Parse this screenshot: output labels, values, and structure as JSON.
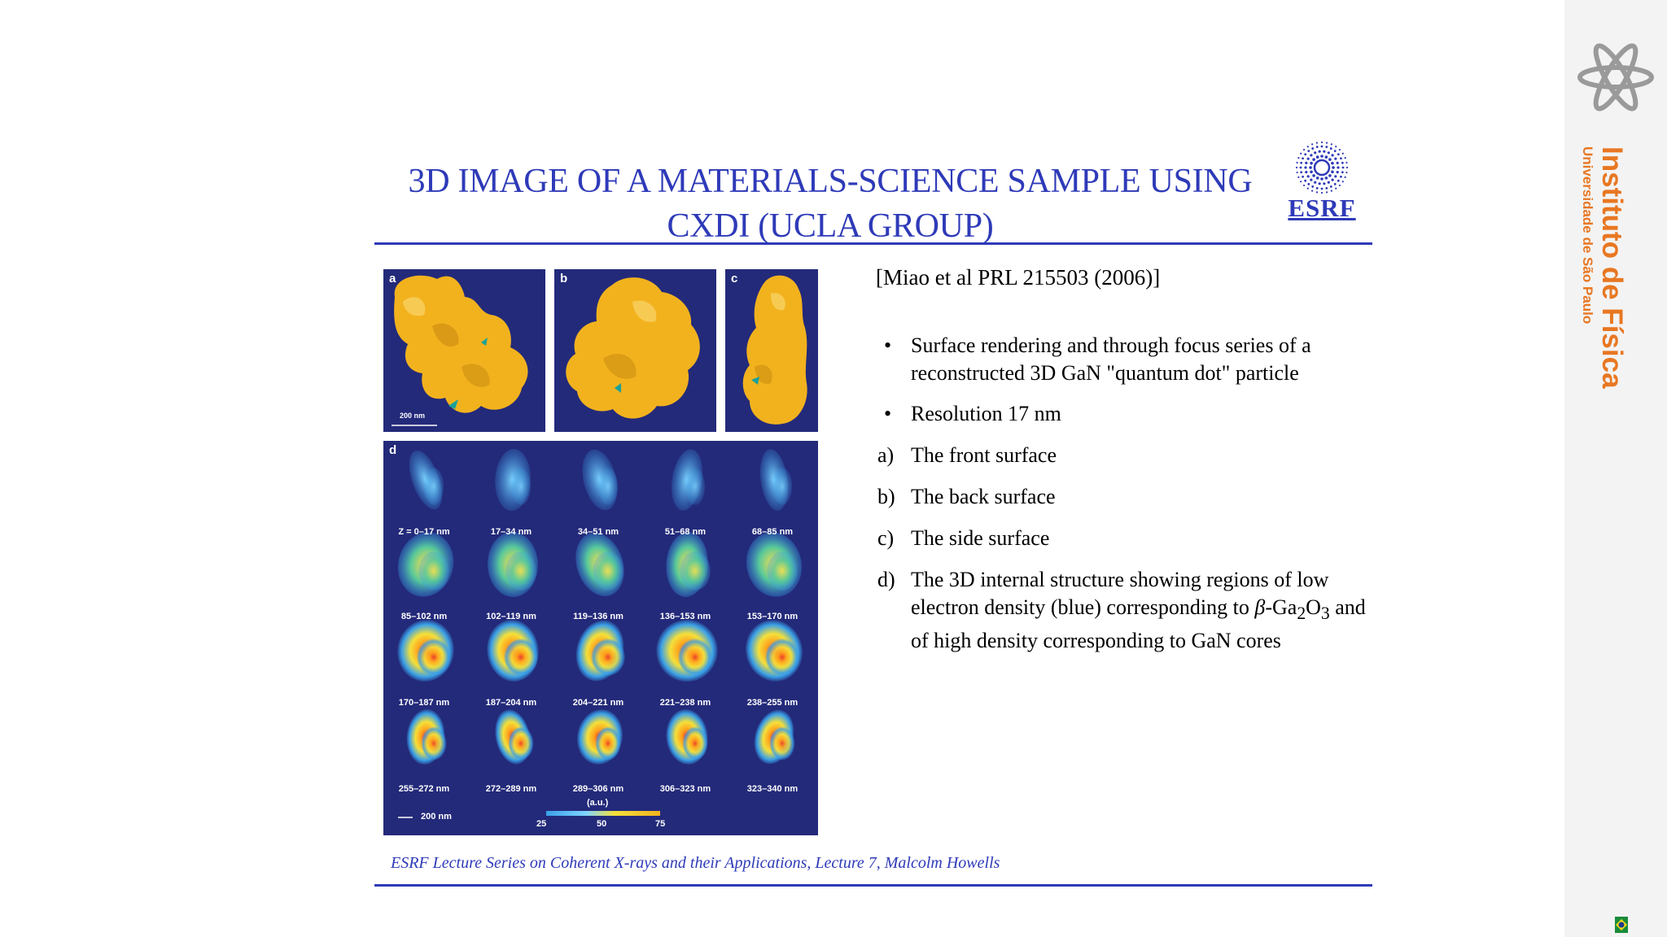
{
  "slide": {
    "title_line1": "3D IMAGE OF A MATERIALS-SCIENCE SAMPLE USING",
    "title_line2": "CXDI (UCLA GROUP)",
    "logo_text": "ESRF",
    "citation": "[Miao et al PRL 215503 (2006)]",
    "bullets": [
      {
        "marker": "•",
        "text": "Surface rendering and through focus series of a reconstructed 3D GaN \"quantum dot\" particle"
      },
      {
        "marker": "•",
        "text": "Resolution 17 nm"
      },
      {
        "marker": "a)",
        "text": "The front surface"
      },
      {
        "marker": "b)",
        "text": "The back surface"
      },
      {
        "marker": "c)",
        "text": "The side surface"
      }
    ],
    "bullet_d": {
      "marker": "d)",
      "text_1": "The 3D internal structure showing regions of low electron density (blue) corresponding to ",
      "beta": "β",
      "text_2": "-Ga",
      "sub_1": "2",
      "text_3": "O",
      "sub_2": "3",
      "text_4": " and of high density corresponding to GaN cores"
    },
    "footer": "ESRF Lecture Series on Coherent X-rays and their Applications, Lecture 7, Malcolm Howells"
  },
  "figure": {
    "panel_labels": [
      "a",
      "b",
      "c",
      "d"
    ],
    "scale_bar_a": "200 nm",
    "scale_bar_d": "200 nm",
    "slice_labels": [
      "Z = 0–17 nm",
      "17–34 nm",
      "34–51 nm",
      "51–68 nm",
      "68–85 nm",
      "85–102 nm",
      "102–119 nm",
      "119–136 nm",
      "136–153 nm",
      "153–170 nm",
      "170–187 nm",
      "187–204 nm",
      "204–221 nm",
      "221–238 nm",
      "238–255 nm",
      "255–272 nm",
      "272–289 nm",
      "289–306 nm",
      "306–323 nm",
      "323–340 nm"
    ],
    "colorbar_unit": "(a.u.)",
    "colorbar_ticks": [
      "25",
      "50",
      "75"
    ],
    "colors": {
      "background": "#232a7a",
      "surface": "#f2b21e",
      "low_density": "#3aa0e8",
      "high_density": "#e8252b"
    }
  },
  "sidebar": {
    "institute": "Instituto de Física",
    "university": "Universidade de São Paulo",
    "logo_icon": "ifsp-logo-icon",
    "flag_icon": "brazil-flag-icon",
    "accent": "#e87722"
  }
}
